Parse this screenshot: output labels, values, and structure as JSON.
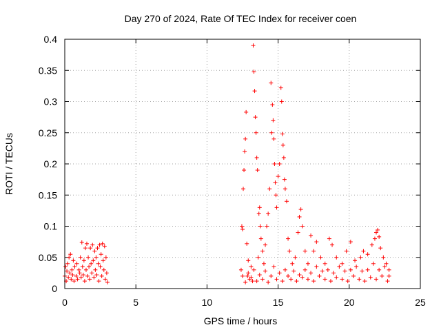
{
  "chart_data": {
    "type": "scatter",
    "title": "Day 270 of 2024, Rate Of TEC Index for receiver coen",
    "xlabel": "GPS time / hours",
    "ylabel": "ROTI / TECUs",
    "xlim": [
      0,
      25
    ],
    "ylim": [
      0,
      0.4
    ],
    "xticks": [
      0,
      5,
      10,
      15,
      20,
      25
    ],
    "xtick_labels": [
      "0",
      "5",
      "10",
      "15",
      "20",
      "25"
    ],
    "yticks": [
      0,
      0.05,
      0.1,
      0.15,
      0.2,
      0.25,
      0.3,
      0.35,
      0.4
    ],
    "ytick_labels": [
      "0",
      "0.05",
      "0.1",
      "0.15",
      "0.2",
      "0.25",
      "0.3",
      "0.35",
      "0.4"
    ],
    "grid": true,
    "marker": "+",
    "color": "#ff0000",
    "series": [
      {
        "points": [
          [
            0.0,
            0.02
          ],
          [
            0.05,
            0.035
          ],
          [
            0.1,
            0.012
          ],
          [
            0.15,
            0.028
          ],
          [
            0.2,
            0.04
          ],
          [
            0.25,
            0.018
          ],
          [
            0.3,
            0.05
          ],
          [
            0.35,
            0.025
          ],
          [
            0.4,
            0.055
          ],
          [
            0.45,
            0.015
          ],
          [
            0.5,
            0.03
          ],
          [
            0.55,
            0.022
          ],
          [
            0.6,
            0.045
          ],
          [
            0.65,
            0.012
          ],
          [
            0.7,
            0.035
          ],
          [
            0.8,
            0.02
          ],
          [
            0.85,
            0.04
          ],
          [
            0.9,
            0.015
          ],
          [
            1.0,
            0.03
          ],
          [
            1.05,
            0.025
          ],
          [
            1.1,
            0.05
          ],
          [
            1.15,
            0.018
          ],
          [
            1.2,
            0.074
          ],
          [
            1.25,
            0.035
          ],
          [
            1.3,
            0.022
          ],
          [
            1.35,
            0.045
          ],
          [
            1.4,
            0.012
          ],
          [
            1.45,
            0.065
          ],
          [
            1.5,
            0.03
          ],
          [
            1.55,
            0.072
          ],
          [
            1.6,
            0.02
          ],
          [
            1.65,
            0.05
          ],
          [
            1.7,
            0.035
          ],
          [
            1.75,
            0.015
          ],
          [
            1.8,
            0.065
          ],
          [
            1.85,
            0.04
          ],
          [
            1.9,
            0.025
          ],
          [
            1.95,
            0.07
          ],
          [
            2.0,
            0.045
          ],
          [
            2.05,
            0.018
          ],
          [
            2.1,
            0.06
          ],
          [
            2.15,
            0.03
          ],
          [
            2.2,
            0.05
          ],
          [
            2.25,
            0.022
          ],
          [
            2.3,
            0.065
          ],
          [
            2.35,
            0.04
          ],
          [
            2.4,
            0.012
          ],
          [
            2.45,
            0.07
          ],
          [
            2.5,
            0.035
          ],
          [
            2.55,
            0.055
          ],
          [
            2.6,
            0.02
          ],
          [
            2.65,
            0.072
          ],
          [
            2.7,
            0.045
          ],
          [
            2.75,
            0.03
          ],
          [
            2.8,
            0.068
          ],
          [
            2.85,
            0.015
          ],
          [
            2.9,
            0.05
          ],
          [
            2.95,
            0.025
          ],
          [
            3.0,
            0.01
          ],
          [
            12.4,
            0.03
          ],
          [
            12.45,
            0.1
          ],
          [
            12.5,
            0.095
          ],
          [
            12.55,
            0.16
          ],
          [
            12.6,
            0.19
          ],
          [
            12.65,
            0.22
          ],
          [
            12.7,
            0.24
          ],
          [
            12.75,
            0.283
          ],
          [
            12.8,
            0.072
          ],
          [
            12.85,
            0.02
          ],
          [
            12.9,
            0.045
          ],
          [
            13.0,
            0.015
          ],
          [
            13.1,
            0.035
          ],
          [
            13.2,
            0.012
          ],
          [
            13.25,
            0.39
          ],
          [
            13.3,
            0.348
          ],
          [
            13.35,
            0.317
          ],
          [
            13.4,
            0.275
          ],
          [
            13.45,
            0.25
          ],
          [
            13.5,
            0.21
          ],
          [
            13.55,
            0.19
          ],
          [
            13.6,
            0.05
          ],
          [
            13.65,
            0.12
          ],
          [
            13.7,
            0.13
          ],
          [
            13.75,
            0.1
          ],
          [
            13.8,
            0.08
          ],
          [
            13.9,
            0.06
          ],
          [
            14.0,
            0.04
          ],
          [
            14.1,
            0.07
          ],
          [
            14.2,
            0.1
          ],
          [
            14.3,
            0.12
          ],
          [
            14.4,
            0.16
          ],
          [
            14.5,
            0.33
          ],
          [
            14.55,
            0.25
          ],
          [
            14.6,
            0.295
          ],
          [
            14.65,
            0.27
          ],
          [
            14.7,
            0.24
          ],
          [
            14.75,
            0.2
          ],
          [
            14.8,
            0.17
          ],
          [
            14.85,
            0.15
          ],
          [
            14.9,
            0.13
          ],
          [
            15.0,
            0.18
          ],
          [
            15.1,
            0.2
          ],
          [
            15.2,
            0.322
          ],
          [
            15.25,
            0.3
          ],
          [
            15.3,
            0.248
          ],
          [
            15.35,
            0.23
          ],
          [
            15.4,
            0.21
          ],
          [
            15.45,
            0.175
          ],
          [
            15.5,
            0.16
          ],
          [
            15.6,
            0.14
          ],
          [
            15.7,
            0.08
          ],
          [
            15.8,
            0.06
          ],
          [
            16.0,
            0.04
          ],
          [
            16.2,
            0.05
          ],
          [
            16.4,
            0.09
          ],
          [
            16.5,
            0.115
          ],
          [
            16.6,
            0.127
          ],
          [
            16.7,
            0.1
          ],
          [
            16.9,
            0.06
          ],
          [
            17.1,
            0.04
          ],
          [
            17.3,
            0.085
          ],
          [
            17.5,
            0.06
          ],
          [
            17.7,
            0.075
          ],
          [
            18.0,
            0.05
          ],
          [
            18.3,
            0.04
          ],
          [
            18.6,
            0.08
          ],
          [
            18.8,
            0.07
          ],
          [
            19.1,
            0.05
          ],
          [
            19.5,
            0.04
          ],
          [
            19.8,
            0.06
          ],
          [
            20.1,
            0.075
          ],
          [
            20.4,
            0.045
          ],
          [
            20.8,
            0.05
          ],
          [
            21.0,
            0.06
          ],
          [
            21.3,
            0.055
          ],
          [
            21.6,
            0.07
          ],
          [
            21.8,
            0.08
          ],
          [
            21.9,
            0.09
          ],
          [
            22.0,
            0.094
          ],
          [
            22.1,
            0.083
          ],
          [
            22.2,
            0.065
          ],
          [
            22.4,
            0.05
          ],
          [
            22.6,
            0.04
          ],
          [
            22.8,
            0.03
          ],
          [
            12.5,
            0.02
          ],
          [
            12.7,
            0.01
          ],
          [
            12.9,
            0.025
          ],
          [
            13.1,
            0.018
          ],
          [
            13.3,
            0.03
          ],
          [
            13.5,
            0.012
          ],
          [
            13.7,
            0.022
          ],
          [
            13.9,
            0.015
          ],
          [
            14.1,
            0.028
          ],
          [
            14.3,
            0.01
          ],
          [
            14.5,
            0.02
          ],
          [
            14.7,
            0.035
          ],
          [
            14.9,
            0.015
          ],
          [
            15.1,
            0.025
          ],
          [
            15.3,
            0.012
          ],
          [
            15.5,
            0.03
          ],
          [
            15.7,
            0.02
          ],
          [
            15.9,
            0.015
          ],
          [
            16.1,
            0.028
          ],
          [
            16.3,
            0.012
          ],
          [
            16.5,
            0.022
          ],
          [
            16.7,
            0.018
          ],
          [
            16.9,
            0.03
          ],
          [
            17.1,
            0.015
          ],
          [
            17.3,
            0.025
          ],
          [
            17.5,
            0.012
          ],
          [
            17.7,
            0.035
          ],
          [
            17.9,
            0.02
          ],
          [
            18.1,
            0.028
          ],
          [
            18.3,
            0.015
          ],
          [
            18.5,
            0.03
          ],
          [
            18.7,
            0.012
          ],
          [
            18.9,
            0.025
          ],
          [
            19.1,
            0.018
          ],
          [
            19.3,
            0.035
          ],
          [
            19.5,
            0.015
          ],
          [
            19.7,
            0.028
          ],
          [
            19.9,
            0.012
          ],
          [
            20.1,
            0.03
          ],
          [
            20.3,
            0.02
          ],
          [
            20.5,
            0.035
          ],
          [
            20.7,
            0.015
          ],
          [
            20.9,
            0.028
          ],
          [
            21.1,
            0.012
          ],
          [
            21.3,
            0.03
          ],
          [
            21.5,
            0.018
          ],
          [
            21.7,
            0.04
          ],
          [
            21.9,
            0.015
          ],
          [
            22.1,
            0.03
          ],
          [
            22.3,
            0.02
          ],
          [
            22.5,
            0.035
          ],
          [
            22.7,
            0.012
          ],
          [
            22.8,
            0.02
          ]
        ]
      }
    ]
  }
}
